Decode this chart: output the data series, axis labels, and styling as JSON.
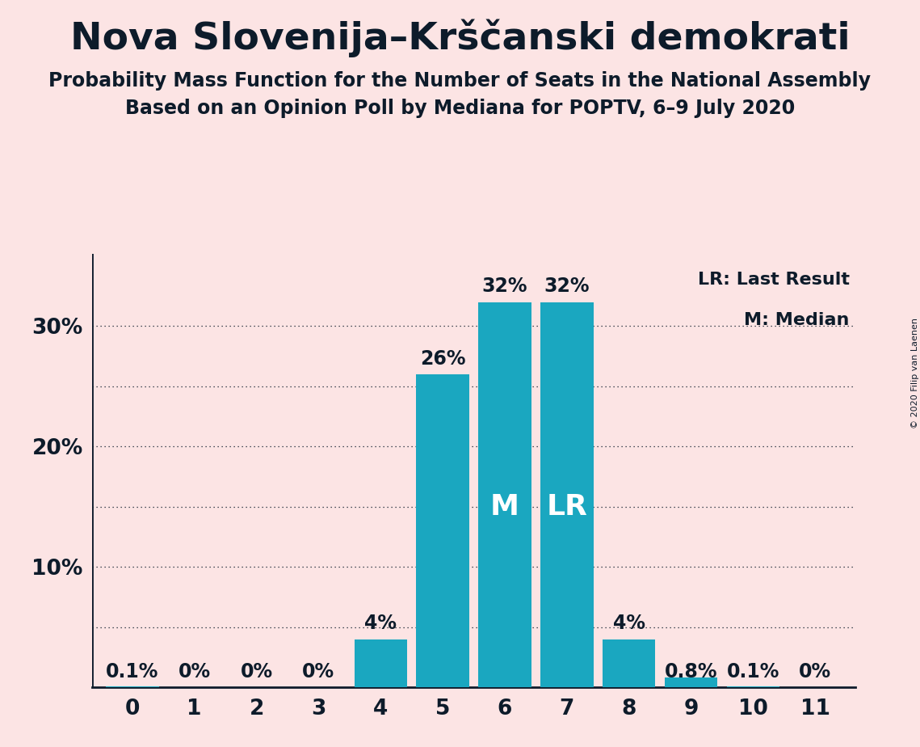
{
  "title": "Nova Slovenija–Krščanski demokrati",
  "subtitle1": "Probability Mass Function for the Number of Seats in the National Assembly",
  "subtitle2": "Based on an Opinion Poll by Mediana for POPTV, 6–9 July 2020",
  "copyright": "© 2020 Filip van Laenen",
  "seats": [
    0,
    1,
    2,
    3,
    4,
    5,
    6,
    7,
    8,
    9,
    10,
    11
  ],
  "probabilities": [
    0.1,
    0.0,
    0.0,
    0.0,
    4.0,
    26.0,
    32.0,
    32.0,
    4.0,
    0.8,
    0.1,
    0.0
  ],
  "bar_color": "#1aa7c0",
  "background_color": "#fce4e4",
  "text_color": "#0d1b2a",
  "median_seat": 6,
  "last_result_seat": 7,
  "ylim": [
    0,
    36
  ],
  "grid_values": [
    5,
    10,
    15,
    20,
    25,
    30
  ],
  "title_fontsize": 34,
  "subtitle_fontsize": 17,
  "bar_label_fontsize": 17,
  "axis_label_fontsize": 19,
  "annotation_fontsize": 26,
  "legend_fontsize": 16,
  "copyright_fontsize": 8
}
